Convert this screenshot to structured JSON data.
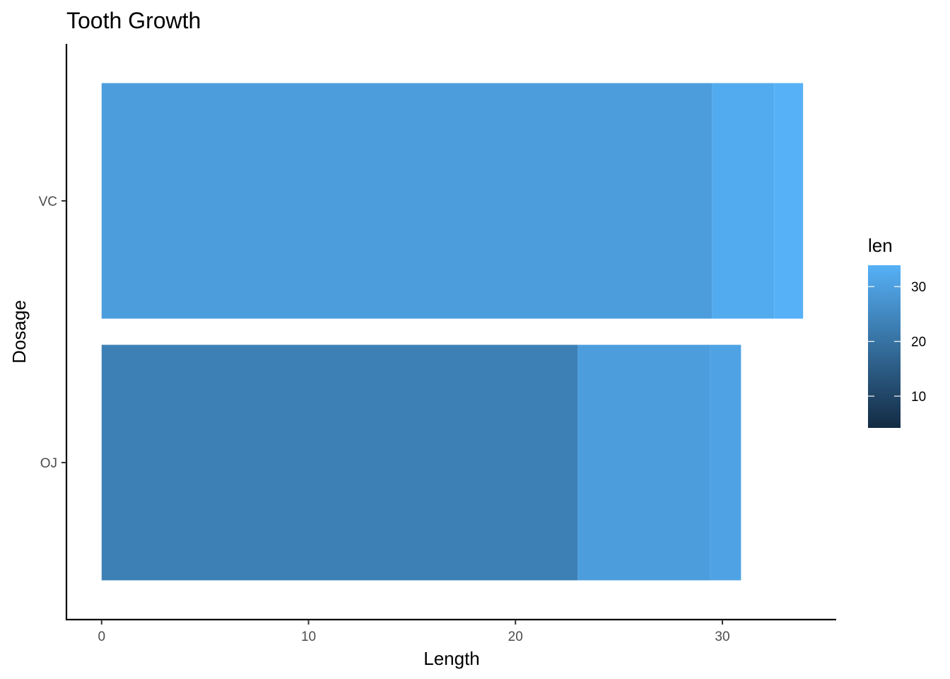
{
  "chart_data": {
    "type": "bar",
    "orientation": "horizontal",
    "position": "stack",
    "title": "Tooth Growth",
    "xlabel": "Length",
    "ylabel": "Dosage",
    "categories": [
      "OJ",
      "VC"
    ],
    "xlim": [
      -1.7,
      35.5
    ],
    "xticks": [
      0,
      10,
      20,
      30
    ],
    "ylim": [
      0.4,
      2.6
    ],
    "grid": false,
    "bars": [
      {
        "category": "OJ",
        "start": 0,
        "end": 23.0,
        "value": 23.0
      },
      {
        "category": "OJ",
        "start": 23.0,
        "end": 29.4,
        "value": 29.4
      },
      {
        "category": "OJ",
        "start": 29.4,
        "end": 30.9,
        "value": 30.9
      },
      {
        "category": "VC",
        "start": 0,
        "end": 29.5,
        "value": 29.5
      },
      {
        "category": "VC",
        "start": 29.5,
        "end": 32.5,
        "value": 32.5
      },
      {
        "category": "VC",
        "start": 32.5,
        "end": 33.9,
        "value": 33.9
      }
    ],
    "legend": {
      "title": "len",
      "type": "colorbar",
      "position": "right",
      "range": [
        4.2,
        33.9
      ],
      "ticks": [
        10,
        20,
        30
      ],
      "color_low": "#132B43",
      "color_high": "#56B1F7"
    }
  }
}
